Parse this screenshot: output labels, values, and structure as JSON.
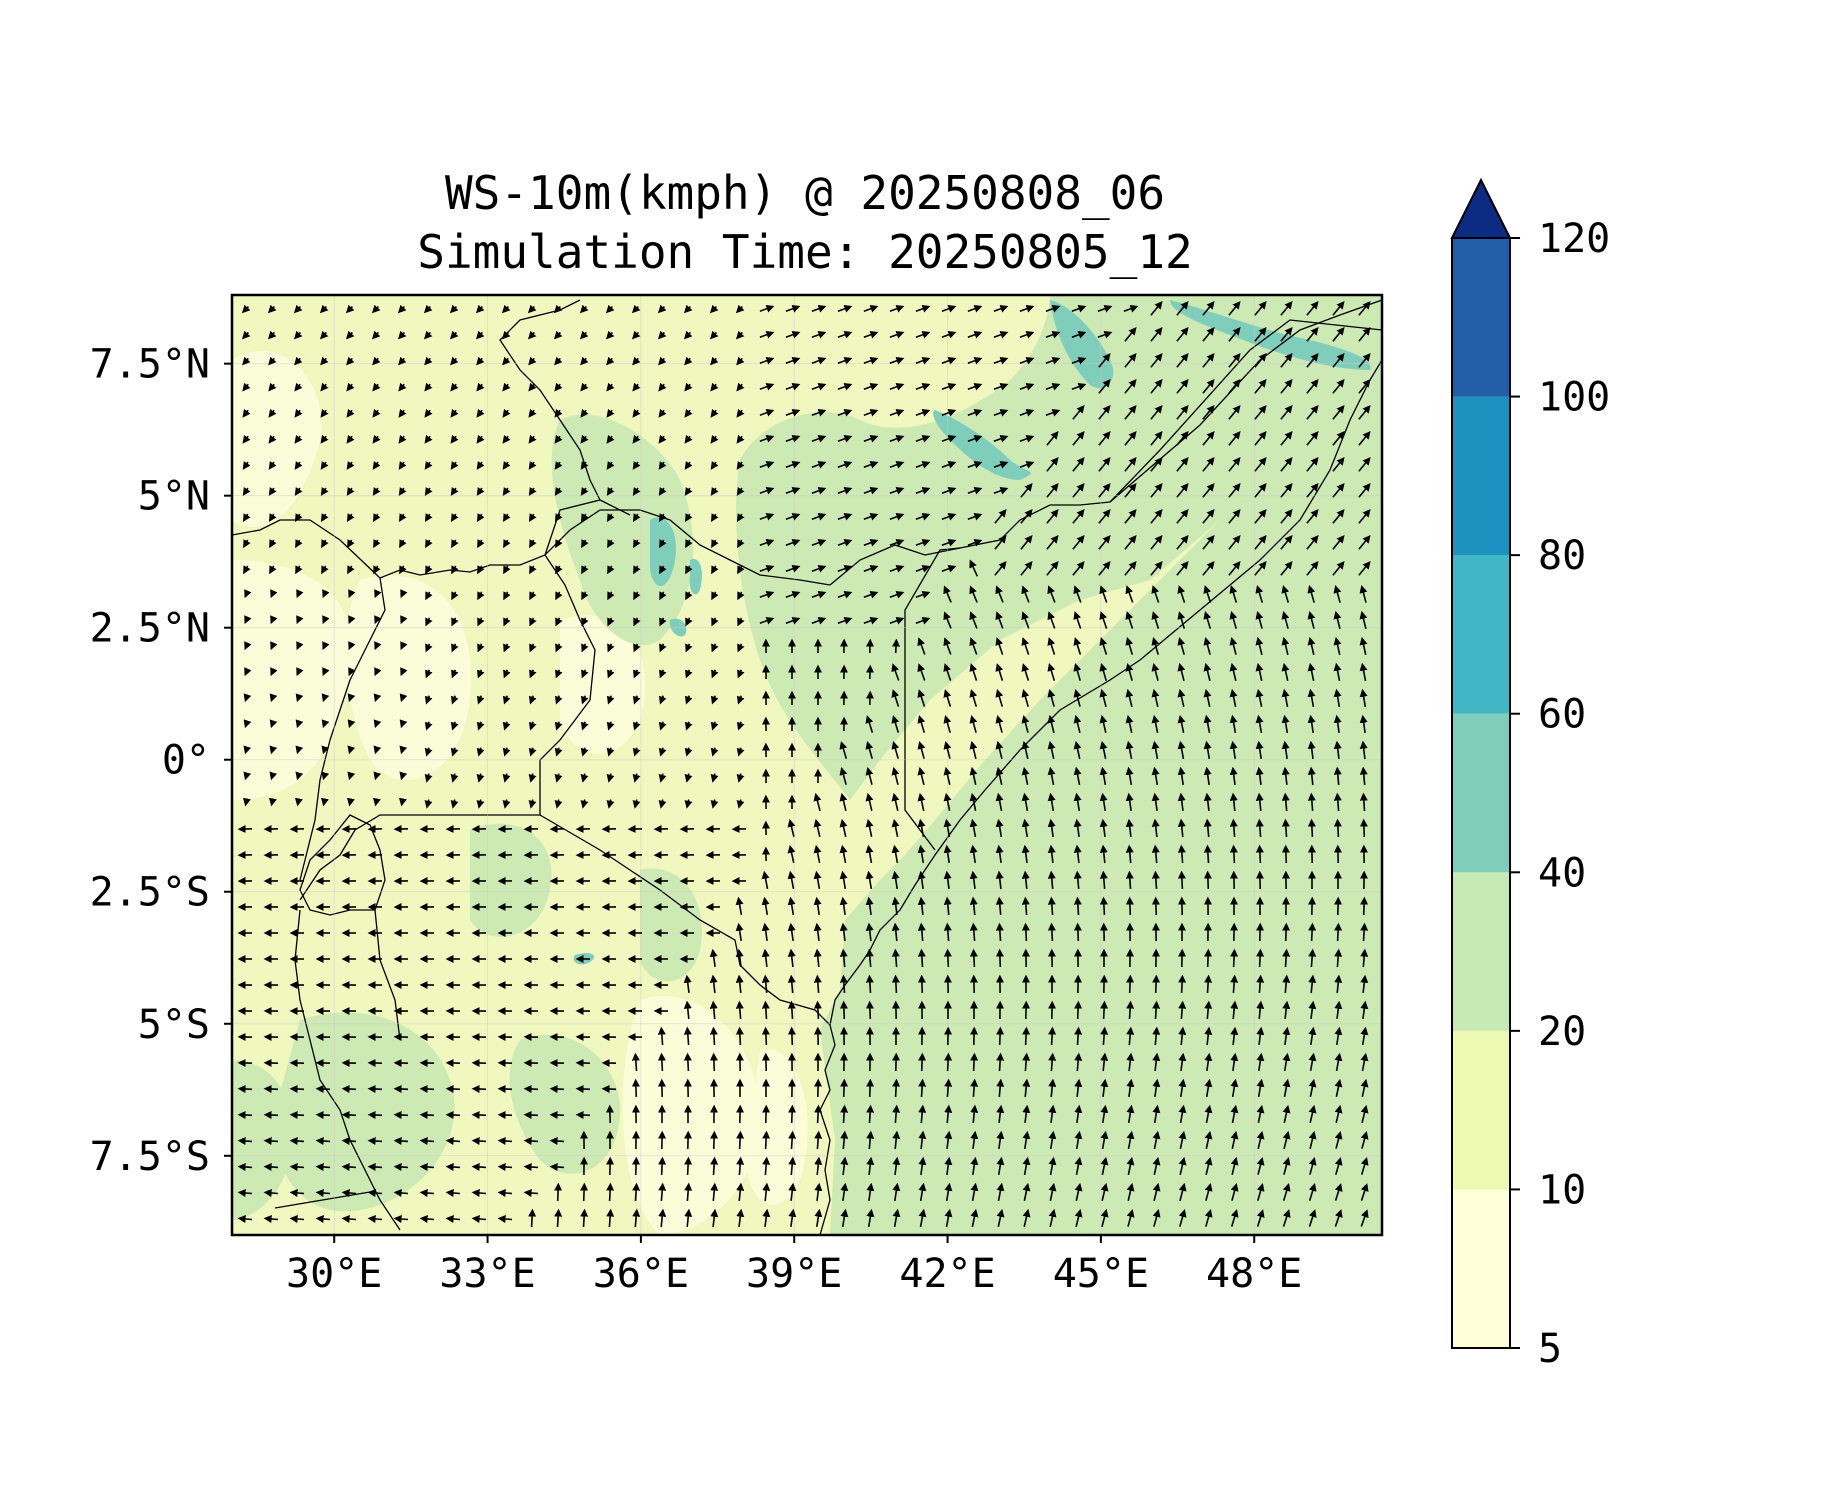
{
  "title_line1": "WS-10m(kmph) @ 20250808_06",
  "title_line2": "Simulation Time: 20250805_12",
  "chart_data": {
    "type": "map",
    "variable": "WS-10m(kmph)",
    "xlim": [
      28,
      50.5
    ],
    "ylim": [
      -9,
      8.8
    ],
    "x_ticks": [
      {
        "value": 30,
        "label": "30°E"
      },
      {
        "value": 33,
        "label": "33°E"
      },
      {
        "value": 36,
        "label": "36°E"
      },
      {
        "value": 39,
        "label": "39°E"
      },
      {
        "value": 42,
        "label": "42°E"
      },
      {
        "value": 45,
        "label": "45°E"
      },
      {
        "value": 48,
        "label": "48°E"
      }
    ],
    "y_ticks": [
      {
        "value": 7.5,
        "label": "7.5°N"
      },
      {
        "value": 5,
        "label": "5°N"
      },
      {
        "value": 2.5,
        "label": "2.5°N"
      },
      {
        "value": 0,
        "label": "0°"
      },
      {
        "value": -2.5,
        "label": "2.5°S"
      },
      {
        "value": -5,
        "label": "5°S"
      },
      {
        "value": -7.5,
        "label": "7.5°S"
      }
    ],
    "colorbar": {
      "levels": [
        5,
        10,
        20,
        40,
        60,
        80,
        100,
        120
      ],
      "labels": [
        "5",
        "10",
        "20",
        "40",
        "60",
        "80",
        "100",
        "120"
      ],
      "colors": [
        "#ffffd9",
        "#edf8b1",
        "#c7e9b4",
        "#7fcdbb",
        "#41b6c4",
        "#1d91c0",
        "#225ea8",
        "#0c2c84"
      ],
      "extend": "max"
    },
    "grid": true
  }
}
